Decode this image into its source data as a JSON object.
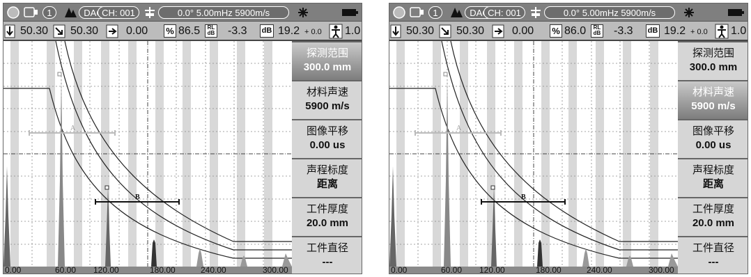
{
  "panels": [
    {
      "status": {
        "channel_num": "1",
        "mode": "DAC",
        "channel": "CH: 001",
        "probe_info": "0.0°  5.00mHz  5900m/s"
      },
      "readings": {
        "r1": "50.30",
        "r2": "50.30",
        "r3": "0.00",
        "percent_label": "%",
        "percent": "86.5",
        "rl_label": "RL dB",
        "rl": "-3.3",
        "db_label": "dB",
        "db": "19.2",
        "db_fine": "+ 0.0",
        "gain": "1.0"
      },
      "menu": [
        {
          "label": "探测范围",
          "value": "300.0 mm"
        },
        {
          "label": "材料声速",
          "value": "5900 m/s"
        },
        {
          "label": "图像平移",
          "value": "0.00 us"
        },
        {
          "label": "声程标度",
          "value": "距离"
        },
        {
          "label": "工件厚度",
          "value": "20.0 mm"
        },
        {
          "label": "工件直径",
          "value": "---"
        }
      ],
      "selected_menu_index": 0,
      "x_axis": [
        "0.00",
        "60.00",
        "120.00",
        "180.00",
        "240.00",
        "300.00"
      ],
      "gate_a_label": "A",
      "gate_b_label": "B"
    },
    {
      "status": {
        "channel_num": "1",
        "mode": "DAC",
        "channel": "CH: 001",
        "probe_info": "0.0°  5.00mHz  5900m/s"
      },
      "readings": {
        "r1": "50.30",
        "r2": "50.30",
        "r3": "0.00",
        "percent_label": "%",
        "percent": "86.0",
        "rl_label": "RL dB",
        "rl": "-3.3",
        "db_label": "dB",
        "db": "19.2",
        "db_fine": "+ 0.0",
        "gain": "1.0"
      },
      "menu": [
        {
          "label": "探测范围",
          "value": "300.0 mm"
        },
        {
          "label": "材料声速",
          "value": "5900 m/s"
        },
        {
          "label": "图像平移",
          "value": "0.00 us"
        },
        {
          "label": "声程标度",
          "value": "距离"
        },
        {
          "label": "工件厚度",
          "value": "20.0 mm"
        },
        {
          "label": "工件直径",
          "value": "---"
        }
      ],
      "selected_menu_index": 1,
      "x_axis": [
        "0.00",
        "60.00",
        "120.00",
        "180.00",
        "240.00",
        "300.00"
      ],
      "gate_a_label": "A",
      "gate_b_label": "B"
    }
  ]
}
